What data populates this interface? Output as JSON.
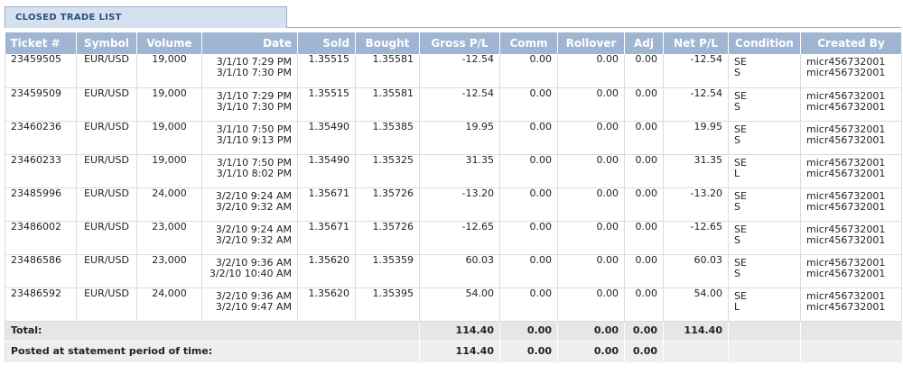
{
  "panel": {
    "title": "CLOSED TRADE LIST"
  },
  "columns": [
    "Ticket #",
    "Symbol",
    "Volume",
    "Date",
    "Sold",
    "Bought",
    "Gross P/L",
    "Comm",
    "Rollover",
    "Adj",
    "Net P/L",
    "Condition",
    "Created By"
  ],
  "rows": [
    {
      "ticket": "23459505",
      "symbol": "EUR/USD",
      "volume": "19,000",
      "date1": "3/1/10 7:29 PM",
      "date2": "3/1/10 7:30 PM",
      "sold": "1.35515",
      "bought": "1.35581",
      "gross": "-12.54",
      "comm": "0.00",
      "rollover": "0.00",
      "adj": "0.00",
      "net": "-12.54",
      "cond1": "SE",
      "cond2": "S",
      "created1": "micr456732001",
      "created2": "micr456732001"
    },
    {
      "ticket": "23459509",
      "symbol": "EUR/USD",
      "volume": "19,000",
      "date1": "3/1/10 7:29 PM",
      "date2": "3/1/10 7:30 PM",
      "sold": "1.35515",
      "bought": "1.35581",
      "gross": "-12.54",
      "comm": "0.00",
      "rollover": "0.00",
      "adj": "0.00",
      "net": "-12.54",
      "cond1": "SE",
      "cond2": "S",
      "created1": "micr456732001",
      "created2": "micr456732001"
    },
    {
      "ticket": "23460236",
      "symbol": "EUR/USD",
      "volume": "19,000",
      "date1": "3/1/10 7:50 PM",
      "date2": "3/1/10 9:13 PM",
      "sold": "1.35490",
      "bought": "1.35385",
      "gross": "19.95",
      "comm": "0.00",
      "rollover": "0.00",
      "adj": "0.00",
      "net": "19.95",
      "cond1": "SE",
      "cond2": "S",
      "created1": "micr456732001",
      "created2": "micr456732001"
    },
    {
      "ticket": "23460233",
      "symbol": "EUR/USD",
      "volume": "19,000",
      "date1": "3/1/10 7:50 PM",
      "date2": "3/1/10 8:02 PM",
      "sold": "1.35490",
      "bought": "1.35325",
      "gross": "31.35",
      "comm": "0.00",
      "rollover": "0.00",
      "adj": "0.00",
      "net": "31.35",
      "cond1": "SE",
      "cond2": "L",
      "created1": "micr456732001",
      "created2": "micr456732001"
    },
    {
      "ticket": "23485996",
      "symbol": "EUR/USD",
      "volume": "24,000",
      "date1": "3/2/10 9:24 AM",
      "date2": "3/2/10 9:32 AM",
      "sold": "1.35671",
      "bought": "1.35726",
      "gross": "-13.20",
      "comm": "0.00",
      "rollover": "0.00",
      "adj": "0.00",
      "net": "-13.20",
      "cond1": "SE",
      "cond2": "S",
      "created1": "micr456732001",
      "created2": "micr456732001"
    },
    {
      "ticket": "23486002",
      "symbol": "EUR/USD",
      "volume": "23,000",
      "date1": "3/2/10 9:24 AM",
      "date2": "3/2/10 9:32 AM",
      "sold": "1.35671",
      "bought": "1.35726",
      "gross": "-12.65",
      "comm": "0.00",
      "rollover": "0.00",
      "adj": "0.00",
      "net": "-12.65",
      "cond1": "SE",
      "cond2": "S",
      "created1": "micr456732001",
      "created2": "micr456732001"
    },
    {
      "ticket": "23486586",
      "symbol": "EUR/USD",
      "volume": "23,000",
      "date1": "3/2/10 9:36 AM",
      "date2": "3/2/10 10:40 AM",
      "sold": "1.35620",
      "bought": "1.35359",
      "gross": "60.03",
      "comm": "0.00",
      "rollover": "0.00",
      "adj": "0.00",
      "net": "60.03",
      "cond1": "SE",
      "cond2": "S",
      "created1": "micr456732001",
      "created2": "micr456732001"
    },
    {
      "ticket": "23486592",
      "symbol": "EUR/USD",
      "volume": "24,000",
      "date1": "3/2/10 9:36 AM",
      "date2": "3/2/10 9:47 AM",
      "sold": "1.35620",
      "bought": "1.35395",
      "gross": "54.00",
      "comm": "0.00",
      "rollover": "0.00",
      "adj": "0.00",
      "net": "54.00",
      "cond1": "SE",
      "cond2": "L",
      "created1": "micr456732001",
      "created2": "micr456732001"
    }
  ],
  "total": {
    "label": "Total:",
    "gross": "114.40",
    "comm": "0.00",
    "rollover": "0.00",
    "adj": "0.00",
    "net": "114.40"
  },
  "posted": {
    "label": "Posted at statement period of time:",
    "gross": "114.40",
    "comm": "0.00",
    "rollover": "0.00",
    "adj": "0.00"
  }
}
